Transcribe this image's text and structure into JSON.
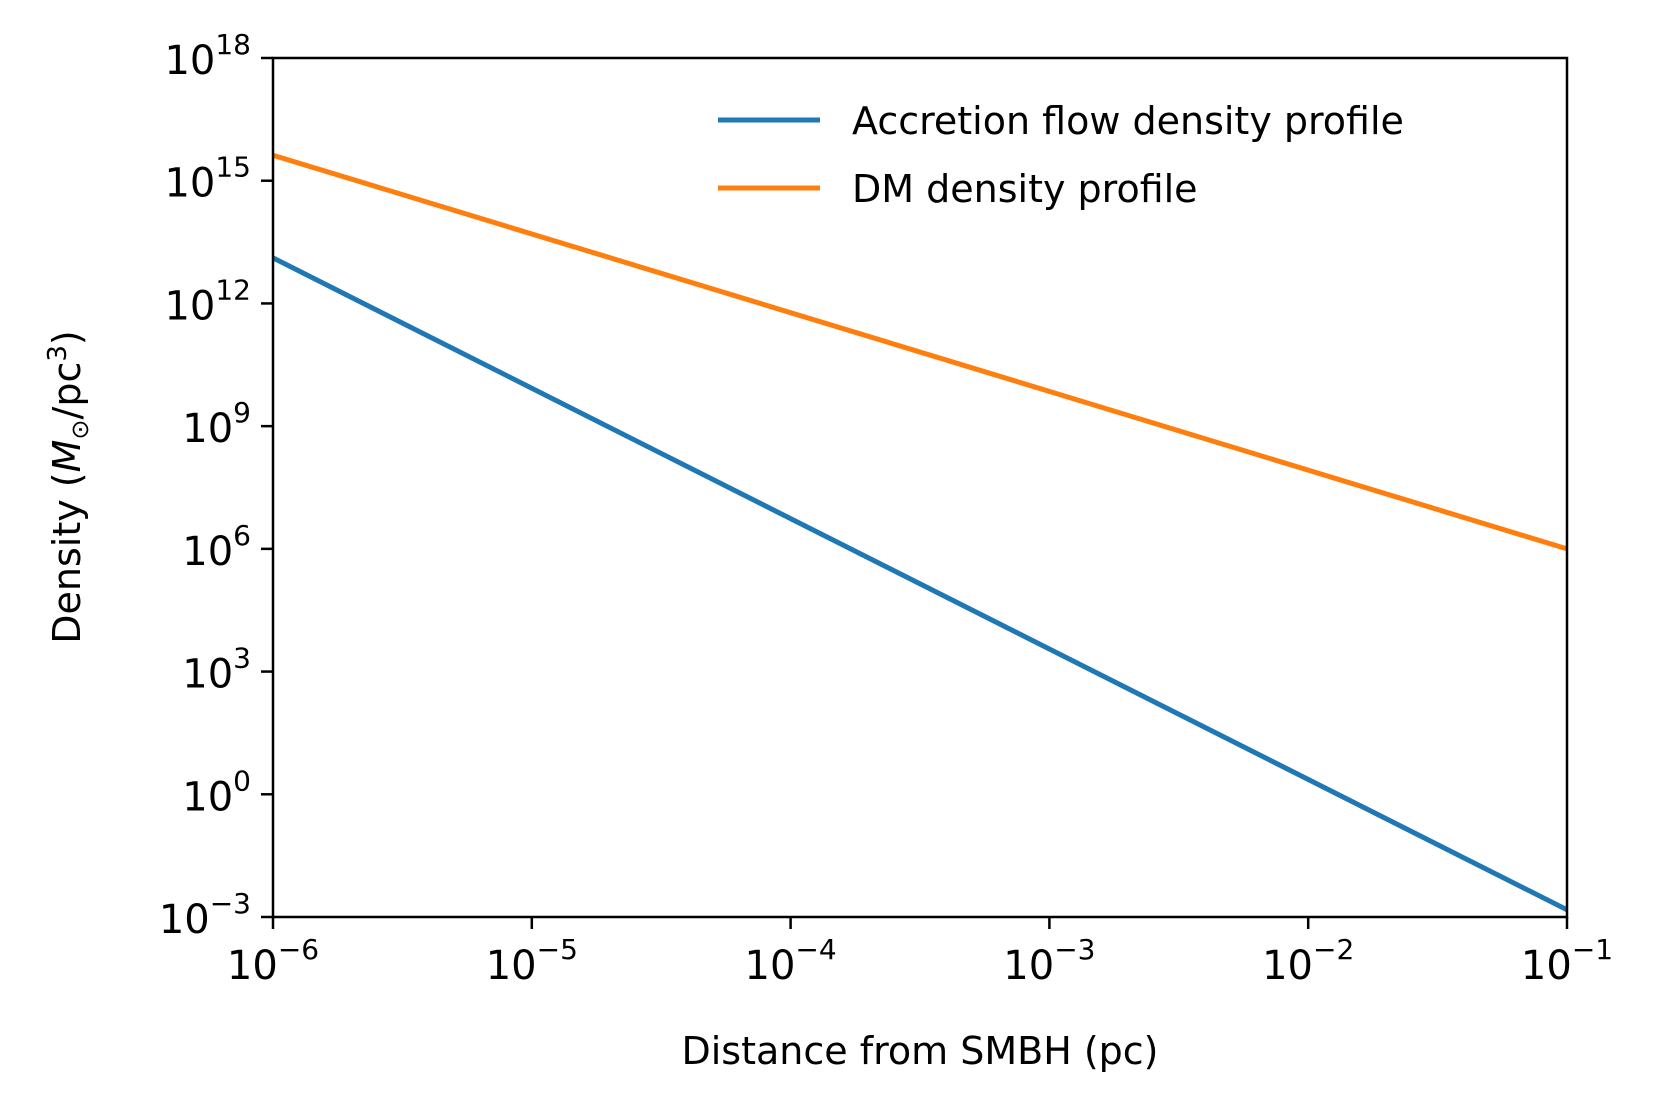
{
  "chart_data": {
    "type": "line",
    "xscale": "log",
    "yscale": "log",
    "xlabel": "Distance from SMBH (pc)",
    "ylabel": "Density (M⊙/pc³)",
    "ylabel_parts": {
      "prefix": "Density (",
      "symbol": "M",
      "subscript": "⊙",
      "unit": "/pc",
      "power": "3",
      "suffix": ")"
    },
    "xlim": [
      1e-06,
      0.1
    ],
    "ylim": [
      0.001,
      1e+18
    ],
    "x_ticks": [
      {
        "value": 1e-06,
        "base": "10",
        "exp": "−6"
      },
      {
        "value": 1e-05,
        "base": "10",
        "exp": "−5"
      },
      {
        "value": 0.0001,
        "base": "10",
        "exp": "−4"
      },
      {
        "value": 0.001,
        "base": "10",
        "exp": "−3"
      },
      {
        "value": 0.01,
        "base": "10",
        "exp": "−2"
      },
      {
        "value": 0.1,
        "base": "10",
        "exp": "−1"
      }
    ],
    "y_ticks": [
      {
        "value": 0.001,
        "base": "10",
        "exp": "−3"
      },
      {
        "value": 1.0,
        "base": "10",
        "exp": "0"
      },
      {
        "value": 1000.0,
        "base": "10",
        "exp": "3"
      },
      {
        "value": 1000000.0,
        "base": "10",
        "exp": "6"
      },
      {
        "value": 1000000000.0,
        "base": "10",
        "exp": "9"
      },
      {
        "value": 1000000000000.0,
        "base": "10",
        "exp": "12"
      },
      {
        "value": 1000000000000000.0,
        "base": "10",
        "exp": "15"
      },
      {
        "value": 1e+18,
        "base": "10",
        "exp": "18"
      }
    ],
    "legend_position": "top-right",
    "series": [
      {
        "name": "Accretion flow density profile",
        "color": "#1f77b4",
        "x": [
          1e-06,
          0.1
        ],
        "y": [
          13000000000000.0,
          0.0015
        ]
      },
      {
        "name": "DM density profile",
        "color": "#ff7f0e",
        "x": [
          1e-06,
          0.1
        ],
        "y": [
          4200000000000000.0,
          1000000.0
        ]
      }
    ]
  }
}
